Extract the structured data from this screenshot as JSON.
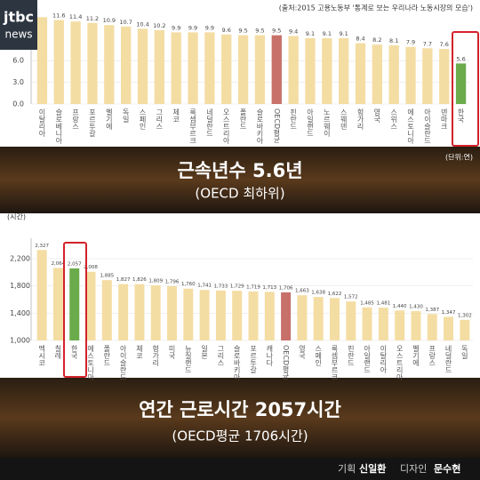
{
  "source": "(출처:2015 고용노동부 '통계로 보는 우리나라 노동시장의 모습')",
  "logo": {
    "line1": "jtbc",
    "line2": "news"
  },
  "chart_data": [
    {
      "type": "bar",
      "title": "근속년수 5.6년",
      "subtitle": "(OECD 최하위)",
      "unit": "(단위:연)",
      "categories": [
        "이탈리아",
        "슬로베니아",
        "프랑스",
        "포르투갈",
        "벨기에",
        "독일",
        "스페인",
        "그리스",
        "체코",
        "룩셈부르크",
        "네덜란드",
        "오스트리아",
        "폴란드",
        "슬로바키아",
        "OECD평균",
        "핀란드",
        "아일랜드",
        "노르웨이",
        "스웨덴",
        "헝가리",
        "영국",
        "스위스",
        "에스토니아",
        "아이슬란드",
        "덴마크",
        "한국"
      ],
      "values": [
        12.0,
        11.6,
        11.4,
        11.2,
        10.9,
        10.7,
        10.4,
        10.2,
        9.9,
        9.9,
        9.9,
        9.6,
        9.5,
        9.5,
        9.5,
        9.4,
        9.1,
        9.1,
        9.1,
        8.4,
        8.2,
        8.1,
        7.9,
        7.7,
        7.6,
        5.6
      ],
      "value_labels": [
        null,
        "11.6",
        "11.4",
        "11.2",
        "10.9",
        "10.7",
        "10.4",
        "10.2",
        "9.9",
        "9.9",
        "9.9",
        "9.6",
        "9.5",
        "9.5",
        "9.5",
        "9.4",
        "9.1",
        "9.1",
        "9.1",
        "8.4",
        "8.2",
        "8.1",
        "7.9",
        "7.7",
        "7.6",
        "5.6"
      ],
      "colors": [
        "#f4dda3",
        "#f4dda3",
        "#f4dda3",
        "#f4dda3",
        "#f4dda3",
        "#f4dda3",
        "#f4dda3",
        "#f4dda3",
        "#f4dda3",
        "#f4dda3",
        "#f4dda3",
        "#f4dda3",
        "#f4dda3",
        "#f4dda3",
        "#c8706a",
        "#f4dda3",
        "#f4dda3",
        "#f4dda3",
        "#f4dda3",
        "#f4dda3",
        "#f4dda3",
        "#f4dda3",
        "#f4dda3",
        "#f4dda3",
        "#f4dda3",
        "#6aab4c"
      ],
      "ylim": [
        0,
        14
      ],
      "yticks": [
        {
          "value": 0,
          "label": "0.0"
        },
        {
          "value": 3,
          "label": "3.0"
        },
        {
          "value": 6,
          "label": "6.0"
        }
      ]
    },
    {
      "type": "bar",
      "title": "연간 근로시간 2057시간",
      "subtitle": "(OECD평균 1706시간)",
      "unit": "(시간)",
      "categories": [
        "멕시코",
        "칠레",
        "한국",
        "에스토니아",
        "폴란드",
        "아이슬란드",
        "체코",
        "헝가리",
        "미국",
        "뉴질랜드",
        "일본",
        "그리스",
        "슬로바키아",
        "포르투갈",
        "캐나다",
        "OECD평균",
        "영국",
        "스페인",
        "룩셈부르크",
        "핀란드",
        "아일랜드",
        "이탈리아",
        "오스트리아",
        "벨기에",
        "프랑스",
        "네덜란드",
        "독일"
      ],
      "values": [
        2327,
        2064,
        2057,
        2008,
        1885,
        1827,
        1826,
        1809,
        1796,
        1760,
        1741,
        1733,
        1729,
        1719,
        1713,
        1706,
        1663,
        1638,
        1622,
        1572,
        1485,
        1481,
        1440,
        1430,
        1387,
        1347,
        1302
      ],
      "value_labels": [
        "2,327",
        "2,064",
        "2,057",
        "2,008",
        "1,885",
        "1,827",
        "1,826",
        "1,809",
        "1,796",
        "1,760",
        "1,741",
        "1,733",
        "1,729",
        "1,719",
        "1,713",
        "1,706",
        "1,663",
        "1,638",
        "1,622",
        "1,572",
        "1,485",
        "1,481",
        "1,440",
        "1,430",
        "1,387",
        "1,347",
        "1,302"
      ],
      "colors": [
        "#f4dda3",
        "#f4dda3",
        "#6aab4c",
        "#f4dda3",
        "#f4dda3",
        "#f4dda3",
        "#f4dda3",
        "#f4dda3",
        "#f4dda3",
        "#f4dda3",
        "#f4dda3",
        "#f4dda3",
        "#f4dda3",
        "#f4dda3",
        "#f4dda3",
        "#c8706a",
        "#f4dda3",
        "#f4dda3",
        "#f4dda3",
        "#f4dda3",
        "#f4dda3",
        "#f4dda3",
        "#f4dda3",
        "#f4dda3",
        "#f4dda3",
        "#f4dda3",
        "#f4dda3"
      ],
      "ylim": [
        1000,
        2500
      ],
      "yticks": [
        {
          "value": 1000,
          "label": "1,000"
        },
        {
          "value": 1400,
          "label": "1,400"
        },
        {
          "value": 1800,
          "label": "1,800"
        },
        {
          "value": 2200,
          "label": "2,200"
        }
      ]
    }
  ],
  "credits": [
    {
      "role": "기획",
      "name": "신일환"
    },
    {
      "role": "디자인",
      "name": "문수현"
    }
  ]
}
